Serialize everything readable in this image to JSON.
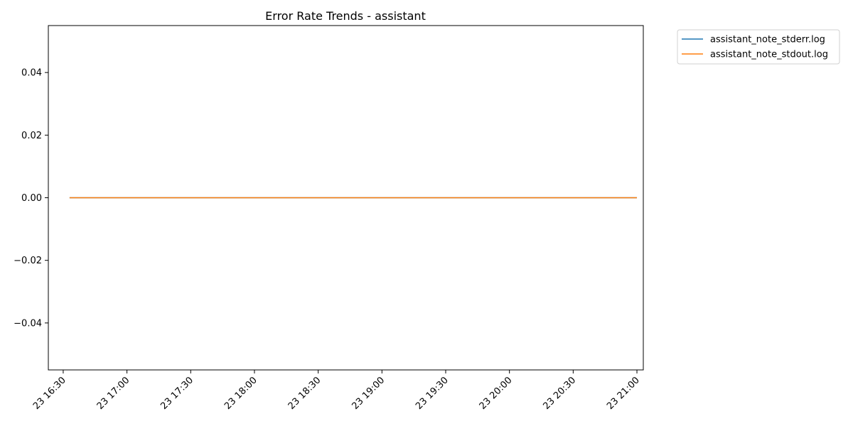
{
  "chart_data": {
    "type": "line",
    "title": "Error Rate Trends - assistant",
    "xlabel": "",
    "ylabel": "",
    "x_range": [
      "2000-01-23T16:23",
      "2000-01-23T21:03"
    ],
    "ylim": [
      -0.055,
      0.055
    ],
    "x_ticks": [
      {
        "value": "2000-01-23T16:30",
        "label": "23 16:30"
      },
      {
        "value": "2000-01-23T17:00",
        "label": "23 17:00"
      },
      {
        "value": "2000-01-23T17:30",
        "label": "23 17:30"
      },
      {
        "value": "2000-01-23T18:00",
        "label": "23 18:00"
      },
      {
        "value": "2000-01-23T18:30",
        "label": "23 18:30"
      },
      {
        "value": "2000-01-23T19:00",
        "label": "23 19:00"
      },
      {
        "value": "2000-01-23T19:30",
        "label": "23 19:30"
      },
      {
        "value": "2000-01-23T20:00",
        "label": "23 20:00"
      },
      {
        "value": "2000-01-23T20:30",
        "label": "23 20:30"
      },
      {
        "value": "2000-01-23T21:00",
        "label": "23 21:00"
      }
    ],
    "y_ticks": [
      {
        "value": 0.04,
        "label": "0.04"
      },
      {
        "value": 0.02,
        "label": "0.02"
      },
      {
        "value": 0.0,
        "label": "0.00"
      },
      {
        "value": -0.02,
        "label": "−0.02"
      },
      {
        "value": -0.04,
        "label": "−0.04"
      }
    ],
    "grid": false,
    "legend_position": "outside-top-right",
    "series": [
      {
        "name": "assistant_note_stderr.log",
        "color": "#1f77b4",
        "points": [
          {
            "x": "2000-01-23T16:33",
            "y": 0
          },
          {
            "x": "2000-01-23T21:00",
            "y": 0
          }
        ]
      },
      {
        "name": "assistant_note_stdout.log",
        "color": "#ff7f0e",
        "points": [
          {
            "x": "2000-01-23T16:33",
            "y": 0
          },
          {
            "x": "2000-01-23T21:00",
            "y": 0
          }
        ]
      }
    ]
  }
}
